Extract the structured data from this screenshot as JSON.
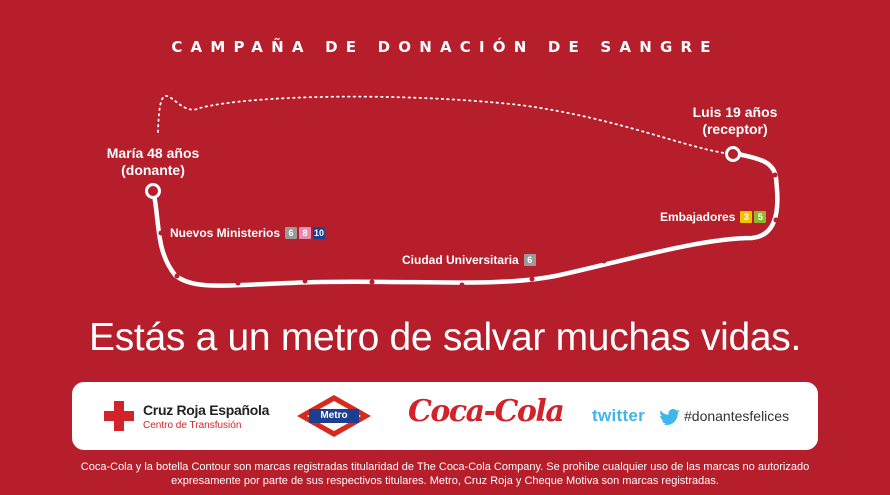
{
  "header": {
    "title": "CAMPAÑA DE DONACIÓN DE SANGRE"
  },
  "donor": {
    "line1": "María 48 años",
    "line2": "(donante)"
  },
  "receiver": {
    "line1": "Luis 19 años",
    "line2": "(receptor)"
  },
  "stations": [
    {
      "name": "Nuevos Ministerios",
      "lines": [
        {
          "number": "6",
          "color": "#9a9a9a"
        },
        {
          "number": "8",
          "color": "#e68ab0"
        },
        {
          "number": "10",
          "color": "#1d3f91"
        }
      ]
    },
    {
      "name": "Ciudad Universitaria",
      "lines": [
        {
          "number": "6",
          "color": "#9a9a9a"
        }
      ]
    },
    {
      "name": "Embajadores",
      "lines": [
        {
          "number": "3",
          "color": "#f2c400"
        },
        {
          "number": "5",
          "color": "#8cbc2c"
        }
      ]
    }
  ],
  "slogan": "Estás a un metro de salvar muchas vidas.",
  "logos": {
    "cruz_roja": {
      "name": "Cruz Roja Española",
      "subtitle": "Centro de Transfusión"
    },
    "metro": {
      "text": "Metro"
    },
    "cocacola": {
      "text": "Coca-Cola"
    },
    "twitter": {
      "wordmark": "twitter",
      "hashtag": "#donantesfelices"
    }
  },
  "legal": {
    "line1": "Coca-Cola y la botella Contour son marcas registradas titularidad de The Coca-Cola Company. Se prohibe cualquier uso de las marcas no autorizado",
    "line2": "expresamente por parte de sus respectivos titulares. Metro, Cruz Roja y Cheque Motiva son marcas registradas."
  },
  "colors": {
    "background": "#b51e2a",
    "cruz_roja_red": "#d2232a",
    "metro_red": "#d52b1e",
    "metro_blue": "#1d3f91",
    "twitter_blue": "#3fb6e8"
  }
}
